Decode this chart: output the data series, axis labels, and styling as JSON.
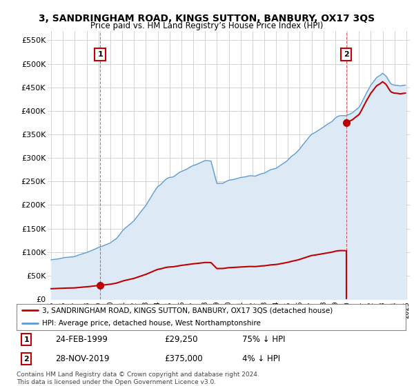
{
  "title": "3, SANDRINGHAM ROAD, KINGS SUTTON, BANBURY, OX17 3QS",
  "subtitle": "Price paid vs. HM Land Registry’s House Price Index (HPI)",
  "ylim": [
    0,
    570000
  ],
  "yticks": [
    0,
    50000,
    100000,
    150000,
    200000,
    250000,
    300000,
    350000,
    400000,
    450000,
    500000,
    550000
  ],
  "ytick_labels": [
    "£0",
    "£50K",
    "£100K",
    "£150K",
    "£200K",
    "£250K",
    "£300K",
    "£350K",
    "£400K",
    "£450K",
    "£500K",
    "£550K"
  ],
  "hpi_color": "#5b9bd5",
  "hpi_fill_color": "#ddeaf6",
  "price_color": "#c00000",
  "background_color": "#ffffff",
  "grid_color": "#cccccc",
  "sale1_date": 1999.14,
  "sale1_price": 29250,
  "sale2_date": 2019.91,
  "sale2_price": 375000,
  "legend_line1": "3, SANDRINGHAM ROAD, KINGS SUTTON, BANBURY, OX17 3QS (detached house)",
  "legend_line2": "HPI: Average price, detached house, West Northamptonshire",
  "table_row1": [
    "1",
    "24-FEB-1999",
    "£29,250",
    "75% ↓ HPI"
  ],
  "table_row2": [
    "2",
    "28-NOV-2019",
    "£375,000",
    "4% ↓ HPI"
  ],
  "footnote": "Contains HM Land Registry data © Crown copyright and database right 2024.\nThis data is licensed under the Open Government Licence v3.0."
}
